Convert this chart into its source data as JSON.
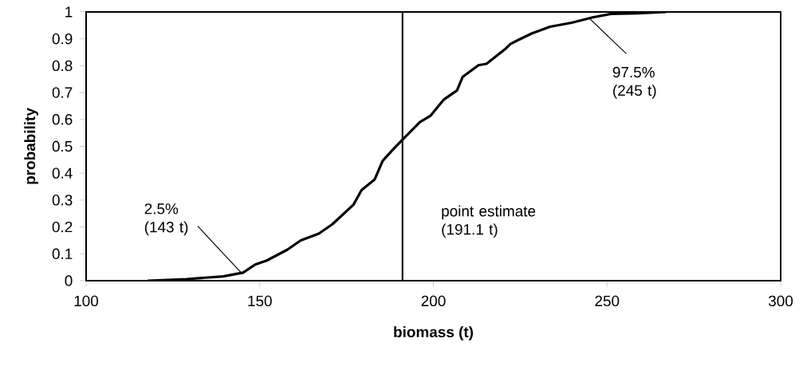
{
  "chart_data": {
    "type": "line",
    "xlabel": "biomass (t)",
    "ylabel": "probability",
    "xlim": [
      100,
      300
    ],
    "xticks": [
      100,
      150,
      200,
      250,
      300
    ],
    "ylim": [
      0,
      1
    ],
    "yticks": [
      0,
      0.1,
      0.2,
      0.3,
      0.4,
      0.5,
      0.6,
      0.7,
      0.8,
      0.9,
      1
    ],
    "marker": "none",
    "line_style": "solid",
    "series": [
      {
        "color": "#000000",
        "x": [
          117.7,
          129,
          139.5,
          145.2,
          148.7,
          152,
          157.9,
          161.8,
          167,
          170.9,
          177,
          179.3,
          183.1,
          185.4,
          188.5,
          191.9,
          196.1,
          199.2,
          203,
          206.8,
          208.4,
          213,
          215.3,
          220.6,
          222.2,
          224.5,
          228.3,
          233.6,
          239.8,
          245.9,
          251.2,
          258.9,
          267
        ],
        "values": [
          0,
          0.006,
          0.016,
          0.03,
          0.06,
          0.075,
          0.115,
          0.15,
          0.175,
          0.21,
          0.283,
          0.337,
          0.377,
          0.446,
          0.49,
          0.535,
          0.59,
          0.614,
          0.674,
          0.708,
          0.758,
          0.802,
          0.807,
          0.861,
          0.881,
          0.896,
          0.92,
          0.945,
          0.96,
          0.98,
          0.993,
          0.995,
          1
        ]
      }
    ],
    "ref_lines": [
      {
        "axis": "x",
        "value": 191.1,
        "label": "point estimate (191.1 t)",
        "color": "#000000"
      }
    ],
    "annotations": [
      {
        "text": "2.5% (143 t)",
        "x": 145,
        "y": 0.025
      },
      {
        "text": "97.5% (245 t)",
        "x": 245,
        "y": 0.975
      }
    ]
  }
}
